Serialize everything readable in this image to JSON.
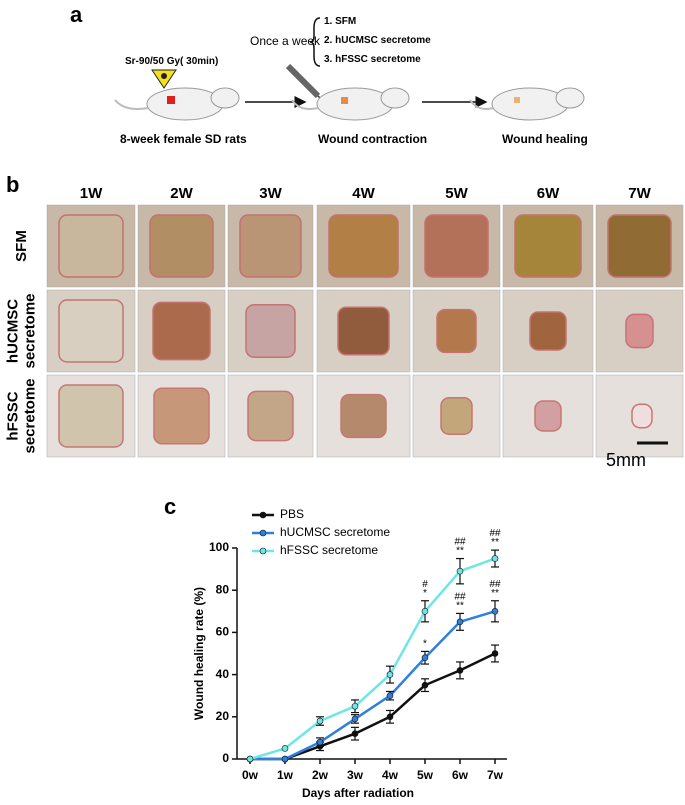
{
  "panel_a": {
    "label": "a",
    "source": "Sr-90/50 Gy( 30min)",
    "rats": "8-week female SD rats",
    "frequency": "Once a week",
    "treatments": [
      "1. SFM",
      "2. hUCMSC secretome",
      "3. hFSSC secretome"
    ],
    "stage_2": "Wound contraction",
    "stage_3": "Wound healing"
  },
  "panel_b": {
    "label": "b",
    "columns": [
      "1W",
      "2W",
      "3W",
      "4W",
      "5W",
      "6W",
      "7W"
    ],
    "rows": [
      [
        "SFM"
      ],
      [
        "hUCMSC",
        "secretome"
      ],
      [
        "hFSSC",
        "secretome"
      ]
    ],
    "scale_bar": "5mm"
  },
  "panel_c": {
    "label": "c"
  },
  "chart_data": {
    "type": "line",
    "x_label": "Days after radiation",
    "y_label": "Wound healing rate  (%)",
    "categories": [
      "0w",
      "1w",
      "2w",
      "3w",
      "4w",
      "5w",
      "6w",
      "7w"
    ],
    "ylim": [
      0,
      100
    ],
    "yticks": [
      0,
      20,
      40,
      60,
      80,
      100
    ],
    "legend": "upper left",
    "series": [
      {
        "name": "PBS",
        "color": "#111111",
        "values": [
          0,
          0,
          6,
          12,
          20,
          35,
          42,
          50
        ],
        "errors": [
          0,
          0,
          2,
          3,
          3,
          3,
          4,
          4
        ],
        "significance": [
          null,
          null,
          null,
          null,
          null,
          null,
          null,
          null
        ]
      },
      {
        "name": "hUCMSC secretome",
        "color": "#2f7fe0",
        "values": [
          0,
          0,
          8,
          19,
          30,
          48,
          65,
          70
        ],
        "errors": [
          0,
          0,
          2,
          2,
          2,
          3,
          4,
          5
        ],
        "significance": [
          null,
          null,
          null,
          null,
          null,
          [
            "*"
          ],
          [
            "##",
            "**"
          ],
          [
            "##",
            "**"
          ]
        ]
      },
      {
        "name": "hFSSC secretome",
        "color": "#6fe6e6",
        "values": [
          0,
          5,
          18,
          25,
          40,
          70,
          89,
          95
        ],
        "errors": [
          0,
          0,
          2,
          3,
          4,
          5,
          6,
          4
        ],
        "significance": [
          null,
          null,
          null,
          null,
          null,
          [
            "#",
            "*"
          ],
          [
            "##",
            "**"
          ],
          [
            "##",
            "**"
          ]
        ]
      }
    ]
  }
}
